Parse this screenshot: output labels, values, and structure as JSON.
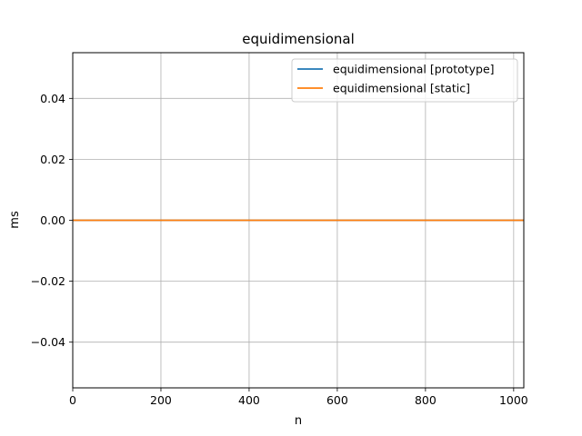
{
  "chart_data": {
    "type": "line",
    "title": "equidimensional",
    "xlabel": "n",
    "ylabel": "ms",
    "xlim": [
      0,
      1023
    ],
    "ylim": [
      -0.055,
      0.055
    ],
    "xticks": [
      0,
      200,
      400,
      600,
      800,
      1000
    ],
    "yticks": [
      -0.04,
      -0.02,
      0.0,
      0.02,
      0.04
    ],
    "xtick_labels": [
      "0",
      "200",
      "400",
      "600",
      "800",
      "1000"
    ],
    "ytick_labels": [
      "−0.04",
      "−0.02",
      "0.00",
      "0.02",
      "0.04"
    ],
    "grid": true,
    "legend_position": "top-right",
    "series": [
      {
        "name": "equidimensional [prototype]",
        "color": "#1f77b4",
        "x": [
          0,
          1023
        ],
        "y": [
          0,
          0
        ]
      },
      {
        "name": "equidimensional [static]",
        "color": "#ff7f0e",
        "x": [
          0,
          1023
        ],
        "y": [
          0,
          0
        ]
      }
    ]
  }
}
